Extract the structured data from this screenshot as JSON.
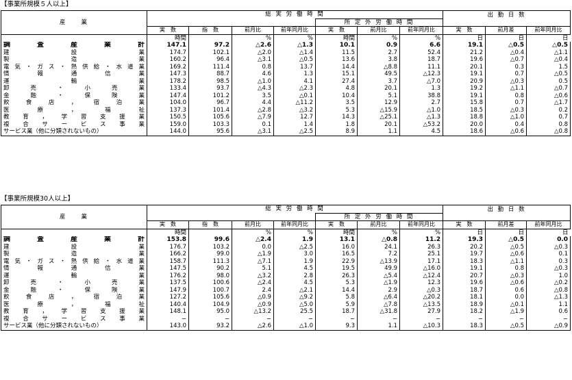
{
  "sections": [
    {
      "title": "【事業所規模５人以上】",
      "header": {
        "industry": "産　　業",
        "total_hours": "総 実 労 働 時 間",
        "attendance": "出 勤 日 数",
        "overtime": "所 定 外 労 働 時 間",
        "actual": "実　数",
        "index": "指　数",
        "mom": "前月比",
        "yoy": "前年同月比",
        "mom_diff": "前月差",
        "yoy_diff": "前年同月比"
      },
      "units": [
        "時間",
        "",
        "%",
        "%",
        "時間",
        "%",
        "%",
        "日",
        "日",
        "日"
      ],
      "rows": [
        {
          "industry": "調査産業計",
          "v": [
            "147.1",
            "97.2",
            "△2.6",
            "△1.3",
            "10.1",
            "0.9",
            "6.6",
            "19.1",
            "△0.5",
            "△0.5"
          ],
          "bold": true
        },
        {
          "industry": "建設業",
          "v": [
            "174.7",
            "102.1",
            "△2.0",
            "△1.4",
            "11.5",
            "2.7",
            "52.4",
            "21.2",
            "△0.4",
            "△1.1"
          ]
        },
        {
          "industry": "製造業",
          "v": [
            "160.2",
            "96.4",
            "△3.1",
            "△0.5",
            "13.6",
            "3.8",
            "18.7",
            "19.6",
            "△0.7",
            "△0.4"
          ]
        },
        {
          "industry": "電気・ガス・熱供給・水道業",
          "v": [
            "169.2",
            "111.4",
            "0.8",
            "13.7",
            "14.4",
            "△8.8",
            "11.1",
            "20.1",
            "0.3",
            "1.5"
          ]
        },
        {
          "industry": "情報通信業",
          "v": [
            "147.3",
            "88.7",
            "4.6",
            "1.3",
            "15.1",
            "49.5",
            "△12.3",
            "19.1",
            "0.7",
            "△0.5"
          ]
        },
        {
          "industry": "運輸業",
          "v": [
            "178.2",
            "98.5",
            "△1.0",
            "4.1",
            "27.4",
            "3.7",
            "△7.0",
            "20.9",
            "△0.3",
            "0.5"
          ]
        },
        {
          "industry": "卸売・小売業",
          "v": [
            "133.4",
            "93.7",
            "△4.3",
            "△2.3",
            "4.8",
            "20.1",
            "1.3",
            "19.2",
            "△1.1",
            "△0.7"
          ]
        },
        {
          "industry": "金融・保険業",
          "v": [
            "147.4",
            "101.2",
            "3.5",
            "△0.1",
            "10.4",
            "5.1",
            "38.8",
            "19.1",
            "0.8",
            "△0.6"
          ]
        },
        {
          "industry": "飲食店，宿泊業",
          "v": [
            "104.0",
            "96.7",
            "4.4",
            "△11.2",
            "3.5",
            "12.9",
            "2.7",
            "15.8",
            "0.7",
            "△1.7"
          ]
        },
        {
          "industry": "医療，福祉",
          "v": [
            "137.3",
            "101.4",
            "△2.8",
            "△3.2",
            "5.3",
            "△15.9",
            "△1.0",
            "18.5",
            "△0.3",
            "0.2"
          ]
        },
        {
          "industry": "教育，学習支援業",
          "v": [
            "150.5",
            "105.6",
            "△7.9",
            "12.7",
            "14.3",
            "△25.1",
            "△1.3",
            "18.8",
            "△1.0",
            "0.7"
          ]
        },
        {
          "industry": "複合サービス事業",
          "v": [
            "159.0",
            "103.3",
            "0.1",
            "1.4",
            "1.8",
            "20.1",
            "△53.2",
            "20.0",
            "0.4",
            "0.8"
          ]
        },
        {
          "industry": "サービス業（他に分類されないもの）",
          "v": [
            "144.0",
            "95.6",
            "△3.1",
            "△2.5",
            "8.9",
            "1.1",
            "4.5",
            "18.6",
            "△0.6",
            "△0.8"
          ],
          "plain": true
        }
      ]
    },
    {
      "title": "【事業所規模30人以上】",
      "header": {
        "industry": "産　　業",
        "total_hours": "総 実 労 働 時 間",
        "attendance": "出 勤 日 数",
        "overtime": "所 定 外 労 働 時 間",
        "actual": "実　数",
        "index": "指　数",
        "mom": "前月比",
        "yoy": "前年同月比",
        "mom_diff": "前月差",
        "yoy_diff": "前年同月比"
      },
      "units": [
        "時間",
        "",
        "%",
        "%",
        "時間",
        "%",
        "%",
        "日",
        "日",
        "日"
      ],
      "rows": [
        {
          "industry": "調査産業計",
          "v": [
            "153.8",
            "99.6",
            "△2.4",
            "1.9",
            "13.1",
            "△0.8",
            "11.2",
            "19.3",
            "△0.5",
            "0.0"
          ],
          "bold": true
        },
        {
          "industry": "建設業",
          "v": [
            "176.7",
            "103.2",
            "0.0",
            "△2.5",
            "16.0",
            "24.1",
            "26.3",
            "20.2",
            "△0.5",
            "△0.3"
          ]
        },
        {
          "industry": "製造業",
          "v": [
            "166.2",
            "99.0",
            "△1.9",
            "3.0",
            "16.5",
            "7.2",
            "25.1",
            "19.7",
            "△0.6",
            "0.1"
          ]
        },
        {
          "industry": "電気・ガス・熱供給・水道業",
          "v": [
            "158.7",
            "111.3",
            "△7.1",
            "1.9",
            "22.9",
            "△13.9",
            "17.1",
            "18.3",
            "△1.1",
            "0.3"
          ]
        },
        {
          "industry": "情報通信業",
          "v": [
            "147.5",
            "90.2",
            "5.1",
            "4.5",
            "19.5",
            "49.9",
            "△16.0",
            "19.1",
            "0.8",
            "△0.3"
          ]
        },
        {
          "industry": "運輸業",
          "v": [
            "176.2",
            "98.0",
            "△3.2",
            "2.8",
            "26.3",
            "△5.4",
            "△12.4",
            "20.7",
            "△0.3",
            "1.0"
          ]
        },
        {
          "industry": "卸売・小売業",
          "v": [
            "137.5",
            "100.6",
            "△2.4",
            "4.5",
            "5.3",
            "△1.9",
            "12.3",
            "19.6",
            "△0.6",
            "△0.2"
          ]
        },
        {
          "industry": "金融・保険業",
          "v": [
            "147.9",
            "100.7",
            "2.4",
            "△2.1",
            "14.4",
            "2.9",
            "△0.3",
            "18.7",
            "0.6",
            "△0.8"
          ]
        },
        {
          "industry": "飲食店，宿泊業",
          "v": [
            "127.2",
            "105.6",
            "△0.9",
            "△9.2",
            "5.8",
            "△6.4",
            "△20.2",
            "18.1",
            "0.0",
            "△1.3"
          ]
        },
        {
          "industry": "医療，福祉",
          "v": [
            "140.4",
            "104.9",
            "△0.9",
            "△5.0",
            "5.9",
            "△7.8",
            "△13.5",
            "18.9",
            "△0.1",
            "1.1"
          ]
        },
        {
          "industry": "教育，学習支援業",
          "v": [
            "148.1",
            "95.0",
            "△13.2",
            "25.5",
            "18.7",
            "△31.8",
            "27.9",
            "18.2",
            "△1.9",
            "0.6"
          ]
        },
        {
          "industry": "複合サービス事業",
          "v": [
            "−",
            "−",
            "−",
            "−",
            "−",
            "−",
            "−",
            "−",
            "−",
            "−"
          ]
        },
        {
          "industry": "サービス業（他に分類されないもの）",
          "v": [
            "143.0",
            "93.2",
            "△2.6",
            "△1.0",
            "9.3",
            "1.1",
            "△10.3",
            "18.3",
            "△0.5",
            "△0.9"
          ],
          "plain": true
        }
      ]
    }
  ]
}
